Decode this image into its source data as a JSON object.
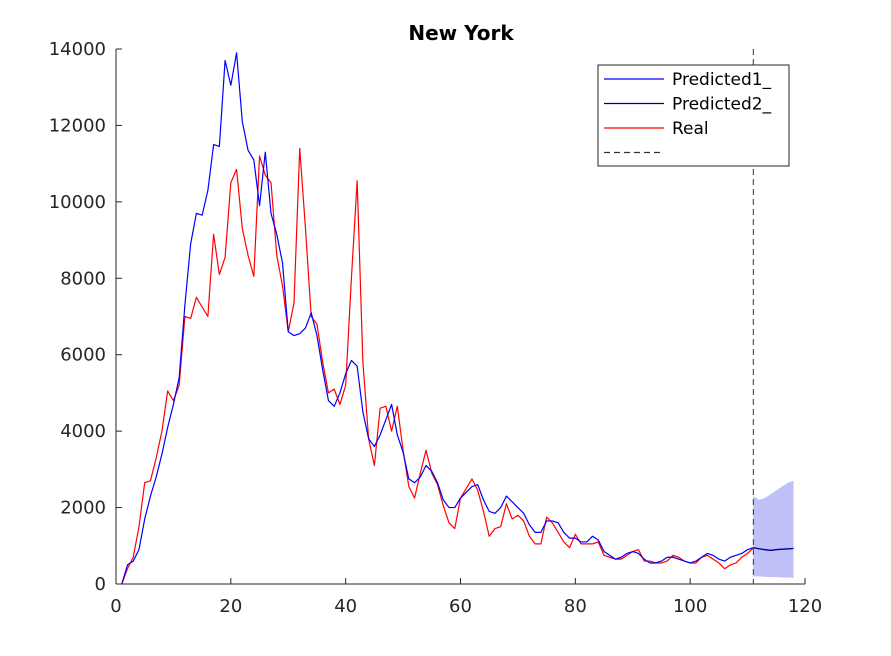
{
  "chart_data": {
    "type": "line",
    "title": "New York",
    "xlabel": "",
    "ylabel": "",
    "xlim": [
      0,
      120
    ],
    "ylim": [
      0,
      14000
    ],
    "xticks": [
      0,
      20,
      40,
      60,
      80,
      100,
      120
    ],
    "yticks": [
      0,
      2000,
      4000,
      6000,
      8000,
      10000,
      12000,
      14000
    ],
    "grid": false,
    "legend_position": "top-right",
    "vline_x": 111,
    "legend": [
      "Predicted1_",
      "Predicted2_",
      "Real",
      ""
    ],
    "colors": {
      "predicted1": "#0000ff",
      "predicted2": "#000080",
      "real": "#ff0000",
      "band": "#bfc0f7",
      "vline": "#333333"
    },
    "series": [
      {
        "name": "Predicted1_",
        "x": [
          1,
          2,
          3,
          4,
          5,
          6,
          7,
          8,
          9,
          10,
          11,
          12,
          13,
          14,
          15,
          16,
          17,
          18,
          19,
          20,
          21,
          22,
          23,
          24,
          25,
          26,
          27,
          28,
          29,
          30,
          31,
          32,
          33,
          34,
          35,
          36,
          37,
          38,
          39,
          40,
          41,
          42,
          43,
          44,
          45,
          46,
          47,
          48,
          49,
          50,
          51,
          52,
          53,
          54,
          55,
          56,
          57,
          58,
          59,
          60,
          61,
          62,
          63,
          64,
          65,
          66,
          67,
          68,
          69,
          70,
          71,
          72,
          73,
          74,
          75,
          76,
          77,
          78,
          79,
          80,
          81,
          82,
          83,
          84,
          85,
          86,
          87,
          88,
          89,
          90,
          91,
          92,
          93,
          94,
          95,
          96,
          97,
          98,
          99,
          100,
          101,
          102,
          103,
          104,
          105,
          106,
          107,
          108,
          109,
          110,
          111,
          112,
          113,
          114,
          115,
          116,
          117,
          118
        ],
        "values": [
          0,
          500,
          600,
          900,
          1700,
          2300,
          2800,
          3400,
          4100,
          4700,
          5400,
          7300,
          8900,
          9700,
          9650,
          10300,
          11500,
          11450,
          13700,
          13050,
          13900,
          12100,
          11350,
          11100,
          9900,
          11300,
          9700,
          9150,
          8400,
          6600,
          6500,
          6550,
          6700,
          7100,
          6500,
          5600,
          4800,
          4650,
          5000,
          5500,
          5850,
          5700,
          4500,
          3800,
          3600,
          3900,
          4300,
          4700,
          3900,
          3450,
          2750,
          2650,
          2800,
          3100,
          2950,
          2650,
          2200,
          2000,
          2000,
          2250,
          2400,
          2550,
          2600,
          2200,
          1900,
          1850,
          2000,
          2300,
          2150,
          2000,
          1850,
          1550,
          1350,
          1350,
          1650,
          1650,
          1600,
          1350,
          1200,
          1200,
          1100,
          1100,
          1250,
          1150,
          850,
          750,
          650,
          700,
          800,
          850,
          800,
          650,
          550,
          550,
          600,
          700,
          700,
          650,
          600,
          550,
          600,
          700,
          800,
          750,
          650,
          600,
          700,
          750,
          800,
          900,
          950,
          920,
          900,
          880,
          900,
          910,
          920,
          930
        ]
      },
      {
        "name": "Predicted2_",
        "x": [
          111,
          112,
          113,
          114,
          115,
          116,
          117,
          118
        ],
        "values": [
          950,
          920,
          900,
          880,
          900,
          910,
          920,
          930
        ]
      },
      {
        "name": "Real",
        "x": [
          1,
          2,
          3,
          4,
          5,
          6,
          7,
          8,
          9,
          10,
          11,
          12,
          13,
          14,
          15,
          16,
          17,
          18,
          19,
          20,
          21,
          22,
          23,
          24,
          25,
          26,
          27,
          28,
          29,
          30,
          31,
          32,
          33,
          34,
          35,
          36,
          37,
          38,
          39,
          40,
          41,
          42,
          43,
          44,
          45,
          46,
          47,
          48,
          49,
          50,
          51,
          52,
          53,
          54,
          55,
          56,
          57,
          58,
          59,
          60,
          61,
          62,
          63,
          64,
          65,
          66,
          67,
          68,
          69,
          70,
          71,
          72,
          73,
          74,
          75,
          76,
          77,
          78,
          79,
          80,
          81,
          82,
          83,
          84,
          85,
          86,
          87,
          88,
          89,
          90,
          91,
          92,
          93,
          94,
          95,
          96,
          97,
          98,
          99,
          100,
          101,
          102,
          103,
          104,
          105,
          106,
          107,
          108,
          109,
          110,
          111
        ],
        "values": [
          0,
          400,
          700,
          1500,
          2650,
          2700,
          3300,
          4000,
          5050,
          4800,
          5200,
          7000,
          6950,
          7500,
          7250,
          7000,
          9150,
          8100,
          8550,
          10500,
          10850,
          9300,
          8600,
          8050,
          11200,
          10700,
          10500,
          8600,
          7800,
          6600,
          7350,
          11400,
          9300,
          7000,
          6800,
          5800,
          5000,
          5100,
          4700,
          5200,
          8000,
          10550,
          5800,
          3800,
          3100,
          4600,
          4650,
          4000,
          4650,
          3500,
          2550,
          2250,
          2900,
          3500,
          2900,
          2600,
          2050,
          1600,
          1450,
          2250,
          2500,
          2750,
          2450,
          1900,
          1250,
          1450,
          1500,
          2100,
          1700,
          1800,
          1650,
          1250,
          1050,
          1050,
          1750,
          1600,
          1350,
          1100,
          950,
          1300,
          1050,
          1050,
          1050,
          1100,
          750,
          700,
          650,
          650,
          750,
          850,
          900,
          600,
          600,
          550,
          550,
          600,
          750,
          700,
          600,
          550,
          550,
          700,
          750,
          650,
          550,
          400,
          500,
          550,
          700,
          800,
          950
        ]
      }
    ],
    "band": {
      "x": [
        111,
        112,
        113,
        114,
        115,
        116,
        117,
        118
      ],
      "upper": [
        2300,
        2200,
        2250,
        2350,
        2450,
        2550,
        2650,
        2700
      ],
      "lower": [
        200,
        200,
        190,
        180,
        180,
        170,
        170,
        160
      ]
    }
  }
}
